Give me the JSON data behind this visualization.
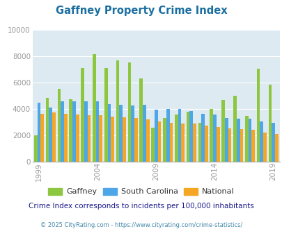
{
  "title": "Gaffney Property Crime Index",
  "title_color": "#1a6ea0",
  "subtitle": "Crime Index corresponds to incidents per 100,000 inhabitants",
  "footer": "© 2025 CityRating.com - https://www.cityrating.com/crime-statistics/",
  "years": [
    1999,
    2000,
    2001,
    2002,
    2003,
    2004,
    2005,
    2006,
    2007,
    2008,
    2009,
    2010,
    2011,
    2012,
    2013,
    2014,
    2015,
    2016,
    2017,
    2018,
    2019,
    2020
  ],
  "gaffney": [
    2000,
    4850,
    5500,
    4700,
    7100,
    8150,
    7100,
    7650,
    7500,
    6300,
    2550,
    3300,
    3550,
    3800,
    2950,
    4000,
    4650,
    5000,
    3450,
    7050,
    5850,
    null
  ],
  "south_carolina": [
    4450,
    4100,
    4550,
    4550,
    4550,
    4550,
    4350,
    4300,
    4250,
    4300,
    3950,
    4000,
    4000,
    3850,
    3600,
    3550,
    3300,
    3250,
    3250,
    3050,
    2950,
    null
  ],
  "national": [
    3600,
    3700,
    3600,
    3550,
    3500,
    3500,
    3400,
    3350,
    3300,
    3200,
    3050,
    2950,
    2900,
    2900,
    2700,
    2600,
    2500,
    2450,
    2400,
    2200,
    2100,
    null
  ],
  "gaffney_color": "#8dc63f",
  "sc_color": "#4da6e8",
  "national_color": "#f5a623",
  "bg_color": "#ffffff",
  "plot_bg": "#deeaf1",
  "ylim": [
    0,
    10000
  ],
  "yticks": [
    0,
    2000,
    4000,
    6000,
    8000,
    10000
  ],
  "xtick_years": [
    1999,
    2004,
    2009,
    2014,
    2019
  ],
  "legend_labels": [
    "Gaffney",
    "South Carolina",
    "National"
  ],
  "subtitle_color": "#1a1a8c",
  "footer_color": "#4488aa"
}
